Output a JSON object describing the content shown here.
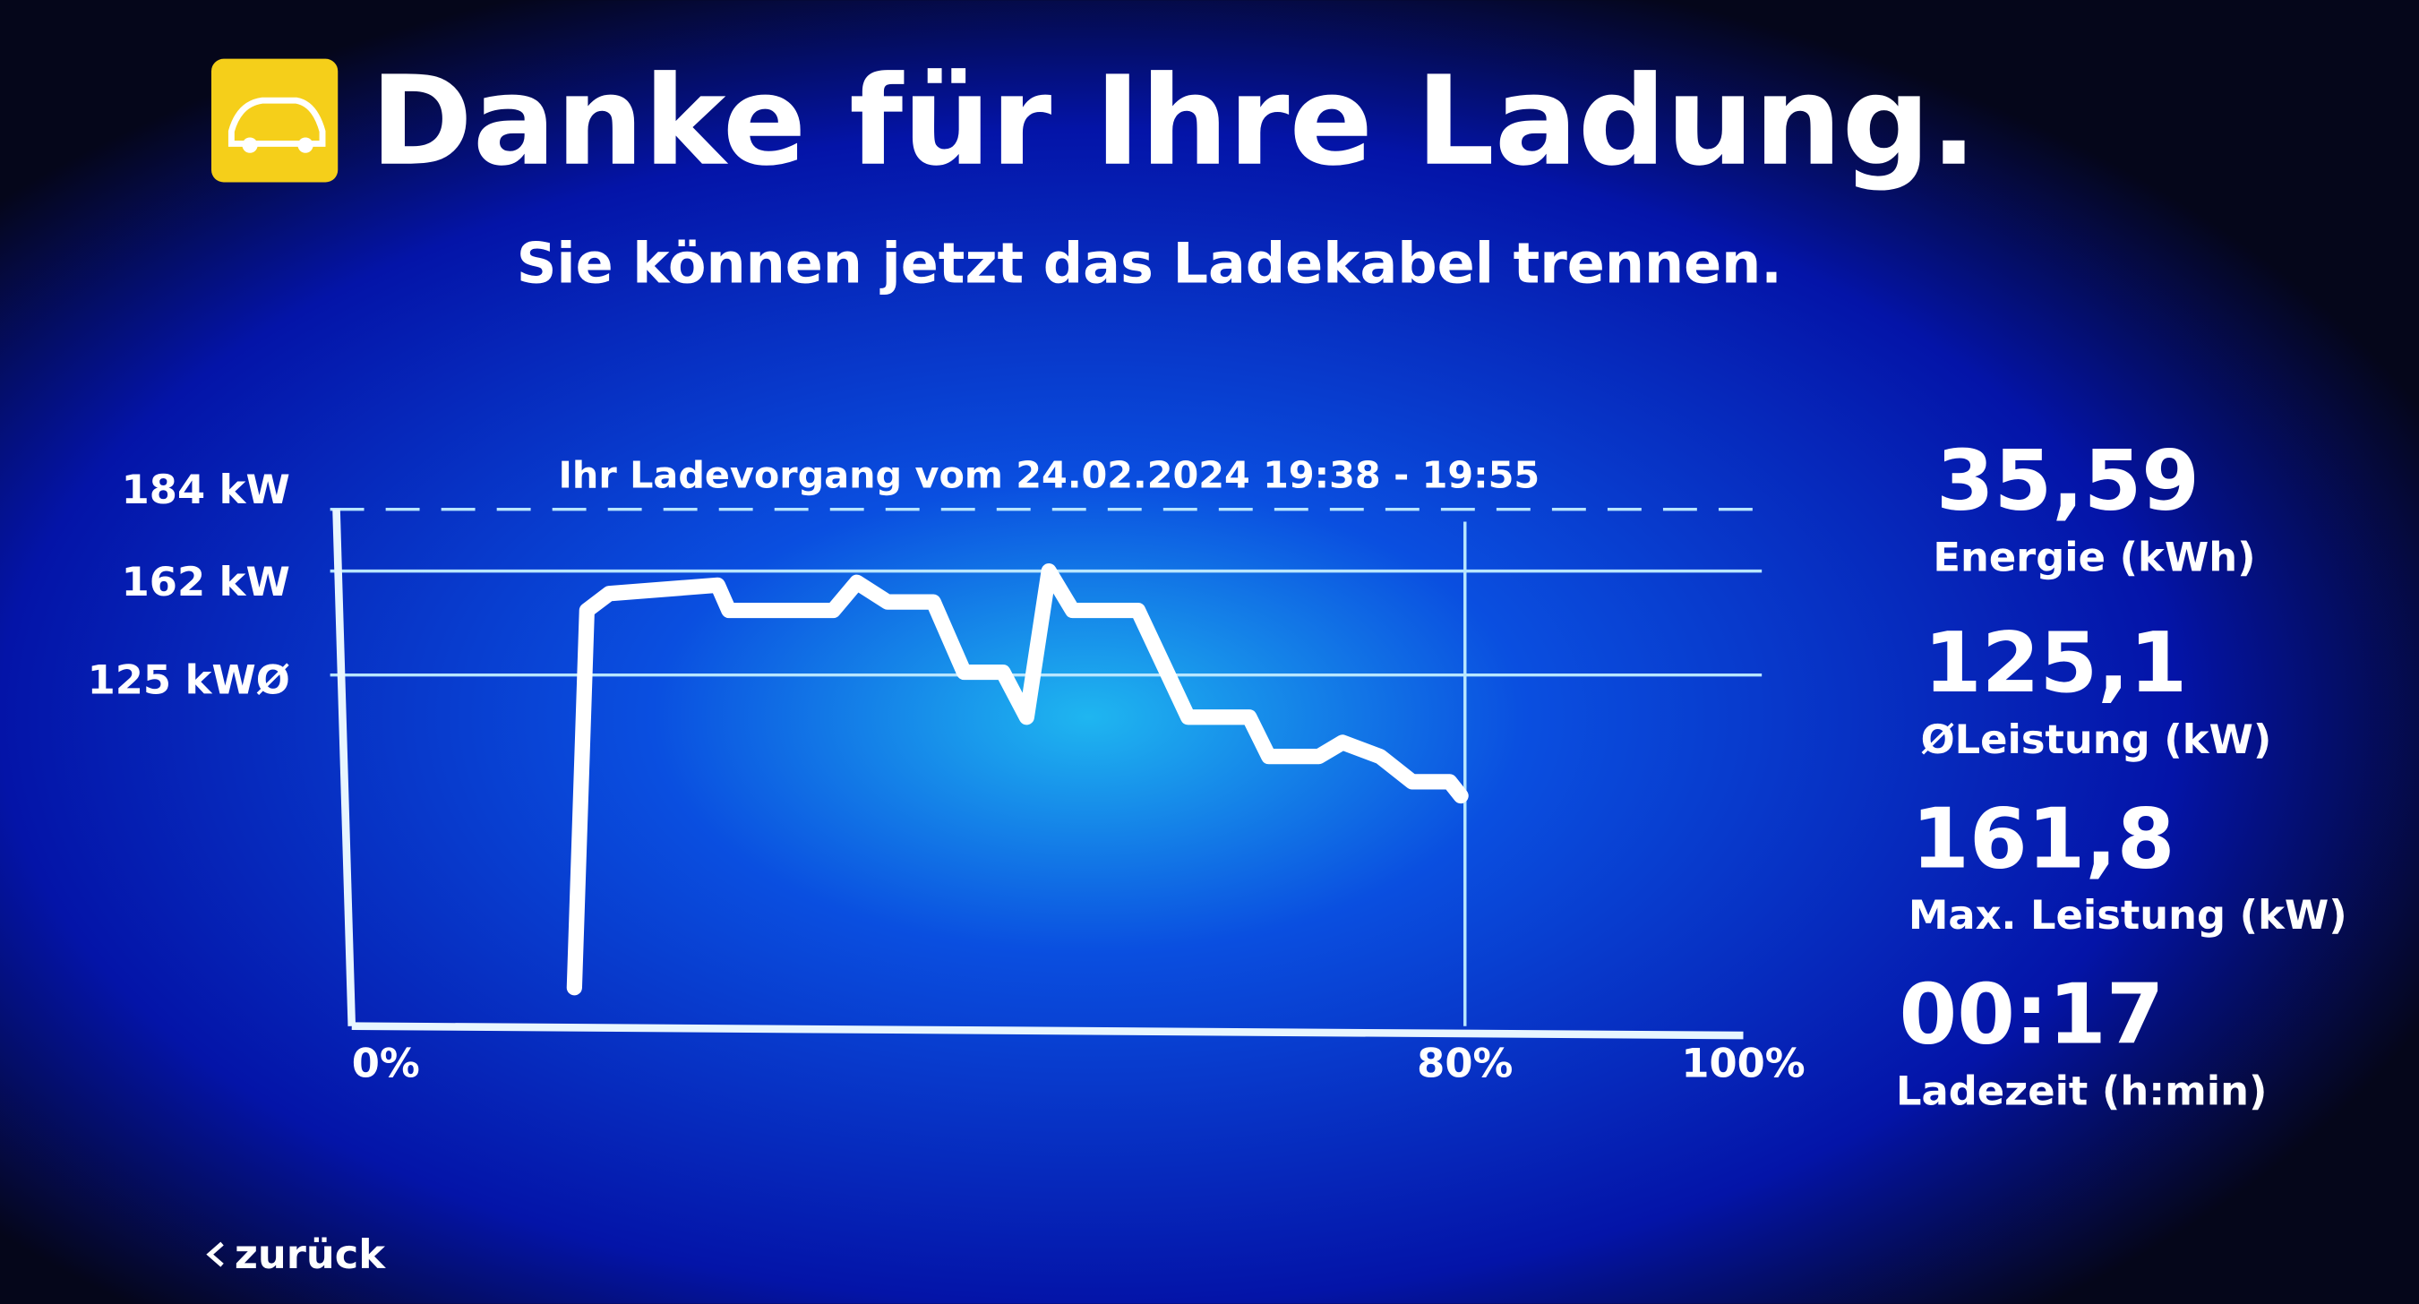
{
  "header": {
    "title": "Danke für Ihre Ladung.",
    "subtitle": "Sie können jetzt das Ladekabel trennen."
  },
  "chart_data": {
    "type": "line",
    "title": "Ihr Ladevorgang vom 24.02.2024 19:38 - 19:55",
    "x": [
      16.0,
      16.9,
      18.5,
      26.3,
      27.1,
      34.6,
      36.3,
      38.5,
      41.8,
      44.0,
      46.8,
      48.5,
      50.1,
      51.8,
      56.5,
      60.1,
      64.5,
      65.9,
      69.5,
      71.2,
      73.9,
      76.2,
      78.9,
      79.7
    ],
    "series": [
      {
        "color": "#ffffff",
        "values": [
          13.7,
          148,
          154,
          157,
          148,
          148,
          158,
          151,
          151,
          126,
          126,
          110,
          162,
          148,
          148,
          110,
          110,
          96,
          96,
          101,
          96,
          87,
          87,
          82
        ]
      }
    ],
    "xlim": [
      0,
      100
    ],
    "ylim": [
      0,
      184
    ],
    "xticks": [
      {
        "value": 0,
        "label": "0%"
      },
      {
        "value": 80,
        "label": "80%"
      },
      {
        "value": 100,
        "label": "100%"
      }
    ],
    "yticks": [
      {
        "value": 184,
        "label": "184 kW"
      },
      {
        "value": 162,
        "label": "162 kW"
      },
      {
        "value": 125,
        "label": "125 kWØ"
      }
    ],
    "grid": true
  },
  "stats": [
    {
      "value": "35,59",
      "label": "Energie (kWh)"
    },
    {
      "value": "125,1",
      "label": "ØLeistung (kW)"
    },
    {
      "value": "161,8",
      "label": "Max. Leistung (kW)"
    },
    {
      "value": "00:17",
      "label": "Ladezeit (h:min)"
    }
  ],
  "navigation": {
    "back": "zurück"
  }
}
